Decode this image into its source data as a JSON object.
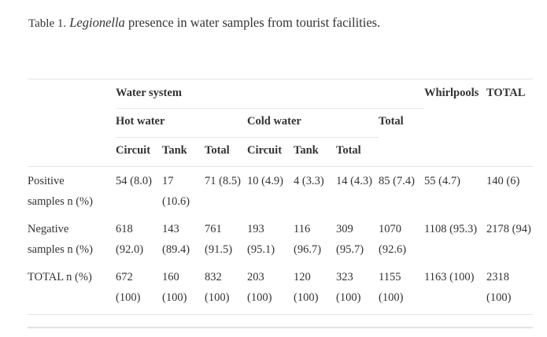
{
  "caption": {
    "label": "Table 1.",
    "italic": "Legionella",
    "rest": "presence in water samples from tourist facilities."
  },
  "headers": {
    "water_system": "Water system",
    "whirlpools": "Whirlpools",
    "grand_total": "TOTAL",
    "hot_water": "Hot water",
    "cold_water": "Cold water",
    "water_total": "Total",
    "hot_circuit": "Circuit",
    "hot_tank": "Tank",
    "hot_total": "Total",
    "cold_circuit": "Circuit",
    "cold_tank": "Tank",
    "cold_total": "Total"
  },
  "rows": [
    {
      "label": [
        "Positive",
        "samples n (%)"
      ],
      "cells": [
        [
          "54 (8.0)"
        ],
        [
          "17",
          "(10.6)"
        ],
        [
          "71 (8.5)"
        ],
        [
          "10 (4.9)"
        ],
        [
          "4 (3.3)"
        ],
        [
          "14 (4.3)"
        ],
        [
          "85 (7.4)"
        ],
        [
          "55 (4.7)"
        ],
        [
          "140 (6)"
        ]
      ]
    },
    {
      "label": [
        "Negative",
        "samples n (%)"
      ],
      "cells": [
        [
          "618",
          "(92.0)"
        ],
        [
          "143",
          "(89.4)"
        ],
        [
          "761",
          "(91.5)"
        ],
        [
          "193",
          "(95.1)"
        ],
        [
          "116",
          "(96.7)"
        ],
        [
          "309",
          "(95.7)"
        ],
        [
          "1070",
          "(92.6)"
        ],
        [
          "1108 (95.3)"
        ],
        [
          "2178 (94)"
        ]
      ]
    },
    {
      "label": [
        "TOTAL n (%)"
      ],
      "cells": [
        [
          "672",
          "(100)"
        ],
        [
          "160",
          "(100)"
        ],
        [
          "832",
          "(100)"
        ],
        [
          "203",
          "(100)"
        ],
        [
          "120",
          "(100)"
        ],
        [
          "323",
          "(100)"
        ],
        [
          "1155",
          "(100)"
        ],
        [
          "1163 (100)"
        ],
        [
          "2318",
          "(100)"
        ]
      ]
    }
  ]
}
